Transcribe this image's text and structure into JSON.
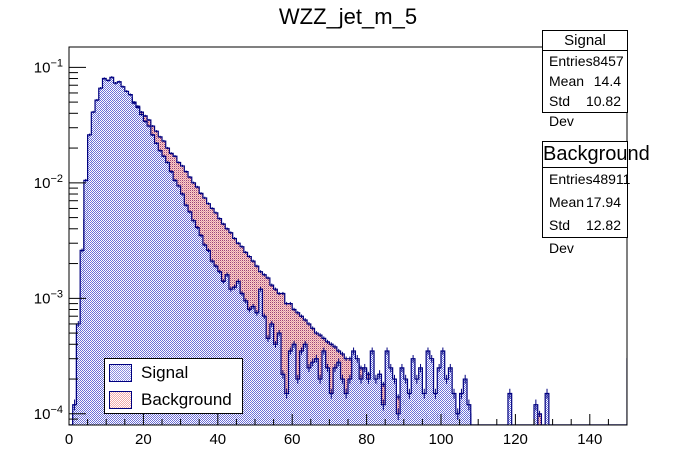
{
  "chart_data": {
    "type": "bar",
    "title": "WZZ_jet_m_5",
    "xlabel": "",
    "ylabel": "",
    "xlim": [
      0,
      150
    ],
    "ylim": [
      8e-05,
      0.15
    ],
    "yscale": "log",
    "x_ticks": [
      "0",
      "20",
      "40",
      "60",
      "80",
      "100",
      "120",
      "140"
    ],
    "y_ticks": [
      {
        "base": "10",
        "exp": "-1"
      },
      {
        "base": "10",
        "exp": "-2"
      },
      {
        "base": "10",
        "exp": "-3"
      },
      {
        "base": "10",
        "exp": "-4"
      }
    ],
    "bin_width": 1,
    "series": [
      {
        "name": "Signal",
        "color": "#00007f",
        "fill": "#8a8ee0",
        "values": [
          0,
          0.00012,
          0.0006,
          0.0026,
          0.0105,
          0.026,
          0.041,
          0.052,
          0.066,
          0.08,
          0.077,
          0.082,
          0.073,
          0.075,
          0.068,
          0.062,
          0.058,
          0.049,
          0.045,
          0.039,
          0.034,
          0.031,
          0.026,
          0.022,
          0.019,
          0.017,
          0.015,
          0.0125,
          0.0105,
          0.0094,
          0.008,
          0.0064,
          0.0056,
          0.0047,
          0.0041,
          0.0035,
          0.0029,
          0.0026,
          0.0021,
          0.0019,
          0.0017,
          0.0014,
          0.0016,
          0.0012,
          0.00125,
          0.0014,
          0.0011,
          0.00095,
          0.0008,
          0.00085,
          0.00075,
          0.0012,
          0.0007,
          0.00045,
          0.0006,
          0.0004,
          0.0005,
          0.00022,
          0.00015,
          0.00035,
          0.0004,
          0.0002,
          0.00035,
          0.0004,
          0.00025,
          0.00028,
          0.0003,
          0.0002,
          0.00035,
          0.00025,
          0.00015,
          0.00025,
          0.00028,
          0.0002,
          0.00015,
          0.0002,
          0.00035,
          0.0003,
          0.0002,
          0.00025,
          0.0002,
          0.00035,
          0.0002,
          0.00022,
          0.00012,
          0.00035,
          0.00025,
          0.0002,
          0.0001,
          0.00025,
          0.0002,
          0.00015,
          0.0003,
          0.0002,
          0.00025,
          0.00015,
          0.00035,
          0.0003,
          0.00015,
          0.00025,
          0.00035,
          0.0002,
          0.00025,
          0.00015,
          0.0001,
          0.00015,
          0.0002,
          0.00012,
          0,
          0,
          0,
          0,
          0,
          0,
          0,
          0,
          0,
          0,
          0.00015,
          0,
          0,
          0,
          0,
          0,
          0,
          0.00012,
          0,
          0,
          0.00015,
          0,
          0,
          0,
          0,
          0,
          0,
          0,
          0,
          0,
          0,
          0,
          0,
          0,
          0,
          0,
          0,
          0,
          0,
          0,
          0,
          0,
          0.0003,
          0
        ]
      },
      {
        "name": "Background",
        "color": "#00007f",
        "fill": "#f0a8a8",
        "values": [
          0,
          0.0001,
          0.0005,
          0.0011,
          0.0048,
          0.014,
          0.024,
          0.032,
          0.04,
          0.041,
          0.048,
          0.052,
          0.052,
          0.054,
          0.058,
          0.056,
          0.054,
          0.05,
          0.046,
          0.041,
          0.038,
          0.035,
          0.031,
          0.028,
          0.025,
          0.023,
          0.02,
          0.018,
          0.017,
          0.015,
          0.014,
          0.0125,
          0.0112,
          0.01,
          0.0092,
          0.0081,
          0.0074,
          0.0066,
          0.006,
          0.0055,
          0.0049,
          0.0044,
          0.004,
          0.0037,
          0.0033,
          0.003,
          0.0028,
          0.0025,
          0.0023,
          0.0021,
          0.0019,
          0.0017,
          0.0016,
          0.0015,
          0.0013,
          0.0012,
          0.0011,
          0.0011,
          0.0009,
          0.0009,
          0.0008,
          0.00075,
          0.0007,
          0.00065,
          0.0006,
          0.00055,
          0.0005,
          0.00048,
          0.00045,
          0.00042,
          0.0004,
          0.00038,
          0.00035,
          0.00033,
          0.0003,
          0.0003,
          0.00028,
          0.00027,
          0.00025,
          0.00024,
          0.00022,
          0.0002,
          0.00019,
          0.00018,
          0.00018,
          0.00017,
          0.00015,
          0.00015,
          0.00014,
          0.00013,
          0.00012,
          0.00012,
          0.00011,
          0.0001,
          0.0001,
          0.0001,
          9e-05,
          9e-05,
          0.0001,
          9e-05,
          0.0001,
          9e-05,
          9e-05,
          9e-05,
          0.0001,
          9e-05,
          9e-05,
          0.0001,
          0,
          0,
          0,
          0,
          0,
          0,
          0,
          0,
          0,
          0,
          0,
          0,
          0,
          0,
          0,
          0,
          0,
          0,
          0.0001,
          0,
          0,
          0,
          0,
          0,
          0,
          0,
          0,
          0,
          0,
          0,
          0,
          0,
          0,
          0,
          0,
          0,
          0,
          0,
          0,
          0,
          0,
          0,
          0,
          0,
          0,
          0
        ]
      }
    ],
    "legend": {
      "position": "bottom-left",
      "entries": [
        "Signal",
        "Background"
      ]
    },
    "stats": [
      {
        "name": "Signal",
        "rows": [
          {
            "label": "Entries",
            "value": "8457"
          },
          {
            "label": "Mean",
            "value": "14.4"
          },
          {
            "label": "Std Dev",
            "value": "10.82"
          }
        ]
      },
      {
        "name": "Background",
        "rows": [
          {
            "label": "Entries",
            "value": "48911"
          },
          {
            "label": "Mean",
            "value": "17.94"
          },
          {
            "label": "Std Dev",
            "value": "12.82"
          }
        ]
      }
    ]
  }
}
